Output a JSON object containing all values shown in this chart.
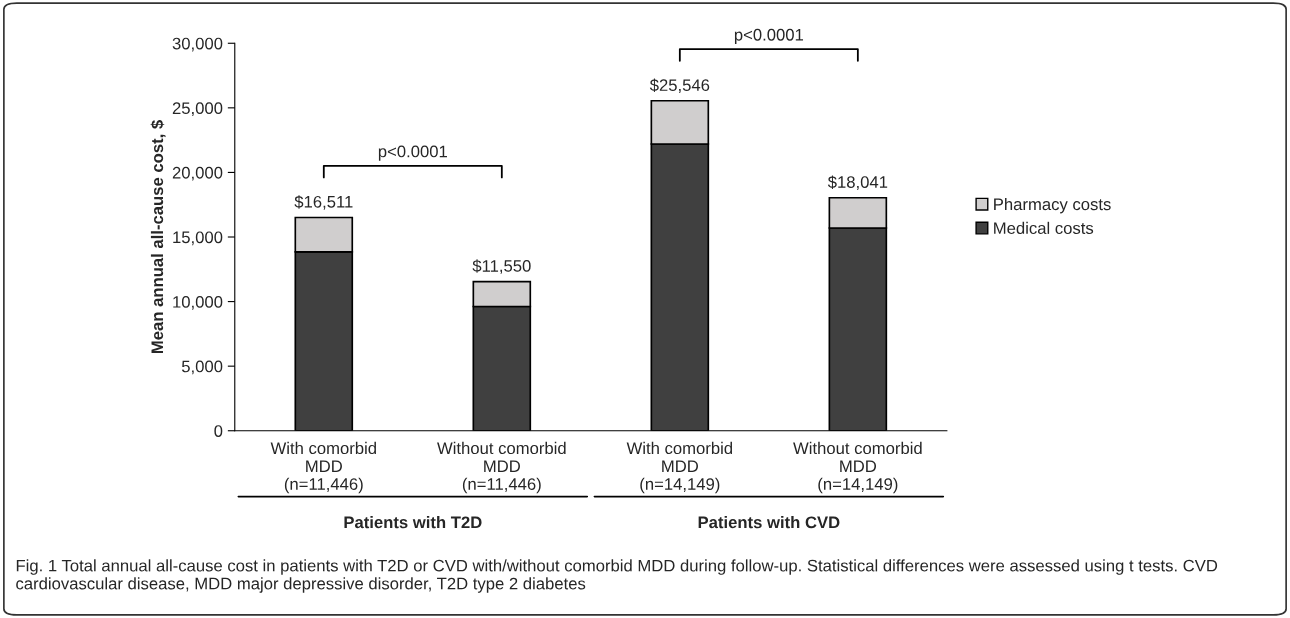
{
  "chart_data": {
    "type": "bar",
    "stacked": true,
    "ylabel": "Mean annual all-cause cost, $",
    "categories": [
      "With comorbid\nMDD\n(n=11,446)",
      "Without comorbid\nMDD\n(n=11,446)",
      "With comorbid\nMDD\n(n=14,149)",
      "Without comorbid\nMDD\n(n=14,149)"
    ],
    "series": [
      {
        "name": "Medical costs",
        "color": "#404040",
        "values": [
          13850,
          9620,
          22200,
          15700
        ]
      },
      {
        "name": "Pharmacy costs",
        "color": "#d0cece",
        "values": [
          2661,
          1930,
          3346,
          2341
        ]
      }
    ],
    "totals": [
      "$16,511",
      "$11,550",
      "$25,546",
      "$18,041"
    ],
    "ylim": [
      0,
      30000
    ],
    "yticks": [
      {
        "value": 0,
        "label": "0"
      },
      {
        "value": 5000,
        "label": "5,000"
      },
      {
        "value": 10000,
        "label": "10,000"
      },
      {
        "value": 15000,
        "label": "15,000"
      },
      {
        "value": 20000,
        "label": "20,000"
      },
      {
        "value": 25000,
        "label": "25,000"
      },
      {
        "value": 30000,
        "label": "30,000"
      }
    ],
    "grid": false,
    "legend": "right",
    "annotations": [
      "p<0.0001",
      "p<0.0001",
      "Patients with T2D",
      "Patients with CVD",
      "Fig. 1 Total annual all-cause cost in patients with T2D or CVD with/without comorbid MDD during follow-up. Statistical differences were assessed using t tests. CVD cardiovascular disease, MDD major depressive disorder, T2D type 2 diabetes"
    ]
  }
}
